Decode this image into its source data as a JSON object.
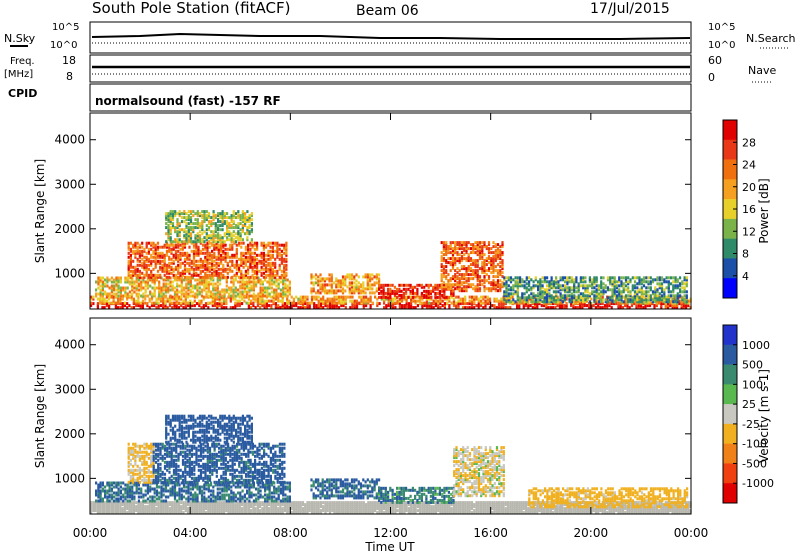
{
  "header": {
    "station": "South Pole Station (fitACF)",
    "beam": "Beam 06",
    "date": "17/Jul/2015"
  },
  "strip_labels": {
    "nsky": "N.Sky",
    "nsky_top": "10^5",
    "nsky_bottom": "10^0",
    "nsearch": "N.Search",
    "nsearch_top": "10^5",
    "nsearch_bottom": "10^0",
    "freq_line1": "Freq.",
    "freq_line2": "[MHz]",
    "freq_top": "18",
    "freq_bottom": "8",
    "nave": "Nave",
    "nave_top": "60",
    "nave_bottom": "0",
    "cpid": "CPID",
    "cpid_text": "normalsound (fast) -157 RF"
  },
  "colors": {
    "power_scale": [
      "#0000ff",
      "#1c4fa8",
      "#2f8a6a",
      "#7ab34a",
      "#e8d02a",
      "#f5a020",
      "#f07010",
      "#e83818",
      "#e00000"
    ],
    "velocity_scale": [
      "#2233cc",
      "#2a5aa0",
      "#3a8a70",
      "#5ab850",
      "#c8c8c0",
      "#f0b020",
      "#f08018",
      "#f04010",
      "#e00000"
    ],
    "ground_scatter": "#b8b8b0"
  },
  "chart_data": [
    {
      "type": "heatmap",
      "name": "Power",
      "xlabel": "Time UT",
      "ylabel": "Slant Range [km]",
      "colorbar_label": "Power [dB]",
      "xlim": [
        0,
        24
      ],
      "ylim": [
        200,
        4600
      ],
      "x_ticks": [
        "00:00",
        "04:00",
        "08:00",
        "12:00",
        "16:00",
        "20:00",
        "00:00"
      ],
      "y_ticks": [
        "1000",
        "2000",
        "3000",
        "4000"
      ],
      "colorbar_ticks": [
        "4",
        "8",
        "12",
        "16",
        "20",
        "24",
        "28"
      ],
      "colorbar_range": [
        0,
        32
      ],
      "echo_regions": [
        {
          "t0": 0.0,
          "t1": 24.0,
          "r0": 220,
          "r1": 320,
          "value": 30
        },
        {
          "t0": 0.0,
          "t1": 24.0,
          "r0": 320,
          "r1": 480,
          "value": 20
        },
        {
          "t0": 0.2,
          "t1": 8.0,
          "r0": 480,
          "r1": 900,
          "value": 18
        },
        {
          "t0": 1.5,
          "t1": 7.8,
          "r0": 900,
          "r1": 1700,
          "value": 24
        },
        {
          "t0": 3.0,
          "t1": 6.5,
          "r0": 1700,
          "r1": 2400,
          "value": 14
        },
        {
          "t0": 8.8,
          "t1": 11.5,
          "r0": 550,
          "r1": 1000,
          "value": 20
        },
        {
          "t0": 11.5,
          "t1": 14.5,
          "r0": 450,
          "r1": 750,
          "value": 28
        },
        {
          "t0": 14.0,
          "t1": 16.5,
          "r0": 600,
          "r1": 1700,
          "value": 24
        },
        {
          "t0": 16.5,
          "t1": 23.8,
          "r0": 350,
          "r1": 900,
          "value": 10
        }
      ]
    },
    {
      "type": "heatmap",
      "name": "Velocity",
      "xlabel": "Time UT",
      "ylabel": "Slant Range [km]",
      "colorbar_label": "Velocity [m s-1]",
      "xlim": [
        0,
        24
      ],
      "ylim": [
        200,
        4600
      ],
      "x_ticks": [
        "00:00",
        "04:00",
        "08:00",
        "12:00",
        "16:00",
        "20:00",
        "00:00"
      ],
      "y_ticks": [
        "1000",
        "2000",
        "3000",
        "4000"
      ],
      "colorbar_ticks": [
        "1000",
        "500",
        "100",
        "25",
        "-25",
        "-100",
        "-500",
        "-1000"
      ],
      "echo_regions": [
        {
          "t0": 0.0,
          "t1": 24.0,
          "r0": 220,
          "r1": 480,
          "value": 0,
          "ground": true
        },
        {
          "t0": 0.2,
          "t1": 8.0,
          "r0": 480,
          "r1": 900,
          "value": 120
        },
        {
          "t0": 1.5,
          "t1": 2.5,
          "r0": 900,
          "r1": 1800,
          "value": -120
        },
        {
          "t0": 2.5,
          "t1": 7.8,
          "r0": 900,
          "r1": 1800,
          "value": 200
        },
        {
          "t0": 3.0,
          "t1": 6.5,
          "r0": 1800,
          "r1": 2400,
          "value": 300
        },
        {
          "t0": 8.8,
          "t1": 11.5,
          "r0": 550,
          "r1": 1000,
          "value": 150
        },
        {
          "t0": 11.5,
          "t1": 14.5,
          "r0": 450,
          "r1": 800,
          "value": 80
        },
        {
          "t0": 14.5,
          "t1": 16.5,
          "r0": 600,
          "r1": 1700,
          "value": -80
        },
        {
          "t0": 17.5,
          "t1": 23.8,
          "r0": 350,
          "r1": 800,
          "value": -200
        }
      ]
    }
  ]
}
